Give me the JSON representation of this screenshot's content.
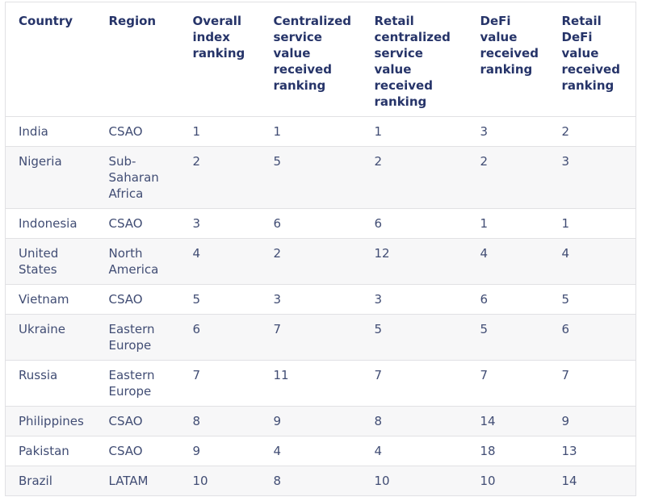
{
  "chart_data": {
    "type": "table",
    "columns": [
      {
        "key": "country",
        "label": "Country"
      },
      {
        "key": "region",
        "label": "Region"
      },
      {
        "key": "overall_index_ranking",
        "label": "Overall index ranking"
      },
      {
        "key": "centralized_service_value_received_ranking",
        "label": "Centralized service value received ranking"
      },
      {
        "key": "retail_centralized_service_value_received_ranking",
        "label": "Retail centralized service value received ranking"
      },
      {
        "key": "defi_value_received_ranking",
        "label": "DeFi value received ranking"
      },
      {
        "key": "retail_defi_value_received_ranking",
        "label": "Retail DeFi value received ranking"
      }
    ],
    "rows": [
      [
        "India",
        "CSAO",
        "1",
        "1",
        "1",
        "3",
        "2"
      ],
      [
        "Nigeria",
        "Sub-Saharan Africa",
        "2",
        "5",
        "2",
        "2",
        "3"
      ],
      [
        "Indonesia",
        "CSAO",
        "3",
        "6",
        "6",
        "1",
        "1"
      ],
      [
        "United States",
        "North America",
        "4",
        "2",
        "12",
        "4",
        "4"
      ],
      [
        "Vietnam",
        "CSAO",
        "5",
        "3",
        "3",
        "6",
        "5"
      ],
      [
        "Ukraine",
        "Eastern Europe",
        "6",
        "7",
        "5",
        "5",
        "6"
      ],
      [
        "Russia",
        "Eastern Europe",
        "7",
        "11",
        "7",
        "7",
        "7"
      ],
      [
        "Philippines",
        "CSAO",
        "8",
        "9",
        "8",
        "14",
        "9"
      ],
      [
        "Pakistan",
        "CSAO",
        "9",
        "4",
        "4",
        "18",
        "13"
      ],
      [
        "Brazil",
        "LATAM",
        "10",
        "8",
        "10",
        "10",
        "14"
      ]
    ],
    "layout": {
      "striped_rows": "even rows shaded",
      "header_position": "top",
      "cell_alignment": "top-left"
    }
  },
  "colors": {
    "header_text": "#263469",
    "body_text": "#414d74",
    "row_alt": "#f7f7f8",
    "border": "#e1e1e4",
    "page_bg": "#ffffff"
  }
}
